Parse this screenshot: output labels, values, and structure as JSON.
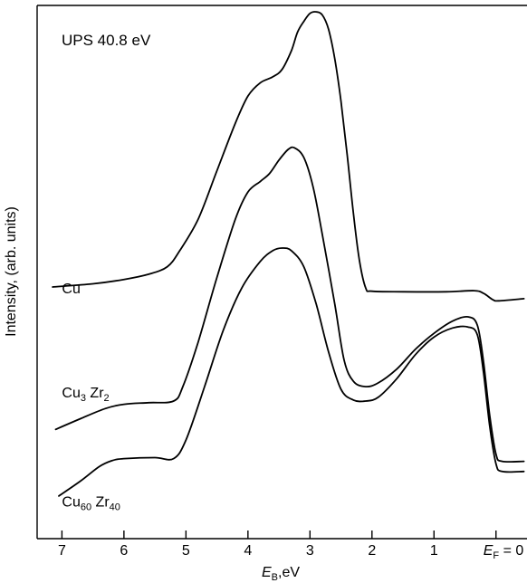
{
  "chart_data": {
    "type": "line",
    "title": "UPS 40.8 eV",
    "xlabel_main": "E",
    "xlabel_sub": "B",
    "xlabel_rest": ",eV",
    "ylabel": "Intensity, (arb. units)",
    "x_reversed": true,
    "xlim": [
      7.4,
      -0.5
    ],
    "ylim": [
      0,
      1
    ],
    "ticks": [
      {
        "value": 7,
        "label": "7"
      },
      {
        "value": 6,
        "label": "6"
      },
      {
        "value": 5,
        "label": "5"
      },
      {
        "value": 4,
        "label": "4"
      },
      {
        "value": 3,
        "label": "3"
      },
      {
        "value": 2,
        "label": "2"
      },
      {
        "value": 1,
        "label": "1"
      }
    ],
    "fermi_tick": {
      "value": 0,
      "main": "E",
      "sub": "F",
      "rest": " = 0"
    },
    "series": [
      {
        "name": "Cu",
        "label_main": "Cu",
        "label_sub1": "",
        "label_mid": "",
        "label_sub2": "",
        "label_at": [
          7.0,
          0.46
        ],
        "points": [
          [
            7.15,
            0.472
          ],
          [
            6.5,
            0.478
          ],
          [
            6.0,
            0.486
          ],
          [
            5.6,
            0.496
          ],
          [
            5.3,
            0.51
          ],
          [
            5.1,
            0.54
          ],
          [
            4.8,
            0.6
          ],
          [
            4.5,
            0.69
          ],
          [
            4.2,
            0.78
          ],
          [
            4.0,
            0.83
          ],
          [
            3.8,
            0.855
          ],
          [
            3.6,
            0.866
          ],
          [
            3.45,
            0.88
          ],
          [
            3.3,
            0.915
          ],
          [
            3.2,
            0.95
          ],
          [
            3.1,
            0.97
          ],
          [
            3.0,
            0.985
          ],
          [
            2.9,
            0.988
          ],
          [
            2.8,
            0.982
          ],
          [
            2.7,
            0.955
          ],
          [
            2.6,
            0.9
          ],
          [
            2.5,
            0.82
          ],
          [
            2.4,
            0.72
          ],
          [
            2.3,
            0.61
          ],
          [
            2.2,
            0.52
          ],
          [
            2.1,
            0.47
          ],
          [
            2.0,
            0.464
          ],
          [
            1.5,
            0.463
          ],
          [
            0.8,
            0.463
          ],
          [
            0.35,
            0.465
          ],
          [
            0.2,
            0.46
          ],
          [
            0.05,
            0.448
          ],
          [
            -0.05,
            0.446
          ],
          [
            -0.45,
            0.45
          ]
        ]
      },
      {
        "name": "Cu3 Zr2",
        "label_main": "Cu",
        "label_sub1": "3",
        "label_mid": " Zr",
        "label_sub2": "2",
        "label_at": [
          7.0,
          0.265
        ],
        "points": [
          [
            7.1,
            0.205
          ],
          [
            6.7,
            0.225
          ],
          [
            6.3,
            0.244
          ],
          [
            6.0,
            0.252
          ],
          [
            5.6,
            0.255
          ],
          [
            5.2,
            0.258
          ],
          [
            5.05,
            0.285
          ],
          [
            4.8,
            0.37
          ],
          [
            4.5,
            0.49
          ],
          [
            4.2,
            0.6
          ],
          [
            4.0,
            0.65
          ],
          [
            3.8,
            0.67
          ],
          [
            3.65,
            0.685
          ],
          [
            3.5,
            0.71
          ],
          [
            3.35,
            0.73
          ],
          [
            3.25,
            0.733
          ],
          [
            3.1,
            0.715
          ],
          [
            2.95,
            0.66
          ],
          [
            2.8,
            0.57
          ],
          [
            2.6,
            0.44
          ],
          [
            2.45,
            0.335
          ],
          [
            2.3,
            0.295
          ],
          [
            2.1,
            0.285
          ],
          [
            1.9,
            0.292
          ],
          [
            1.6,
            0.318
          ],
          [
            1.3,
            0.355
          ],
          [
            1.0,
            0.385
          ],
          [
            0.7,
            0.408
          ],
          [
            0.45,
            0.416
          ],
          [
            0.3,
            0.4
          ],
          [
            0.2,
            0.33
          ],
          [
            0.1,
            0.23
          ],
          [
            0.0,
            0.158
          ],
          [
            -0.1,
            0.145
          ],
          [
            -0.45,
            0.145
          ]
        ]
      },
      {
        "name": "Cu60 Zr40",
        "label_main": "Cu",
        "label_sub1": "60",
        "label_mid": " Zr",
        "label_sub2": "40",
        "label_at": [
          7.0,
          0.06
        ],
        "points": [
          [
            7.05,
            0.08
          ],
          [
            6.7,
            0.108
          ],
          [
            6.4,
            0.135
          ],
          [
            6.2,
            0.146
          ],
          [
            6.0,
            0.15
          ],
          [
            5.5,
            0.152
          ],
          [
            5.2,
            0.15
          ],
          [
            5.0,
            0.185
          ],
          [
            4.7,
            0.285
          ],
          [
            4.4,
            0.39
          ],
          [
            4.1,
            0.47
          ],
          [
            3.8,
            0.52
          ],
          [
            3.6,
            0.54
          ],
          [
            3.45,
            0.545
          ],
          [
            3.3,
            0.54
          ],
          [
            3.1,
            0.51
          ],
          [
            2.9,
            0.44
          ],
          [
            2.7,
            0.35
          ],
          [
            2.5,
            0.28
          ],
          [
            2.3,
            0.26
          ],
          [
            2.1,
            0.258
          ],
          [
            1.9,
            0.265
          ],
          [
            1.6,
            0.3
          ],
          [
            1.3,
            0.345
          ],
          [
            1.0,
            0.378
          ],
          [
            0.7,
            0.395
          ],
          [
            0.45,
            0.397
          ],
          [
            0.3,
            0.382
          ],
          [
            0.2,
            0.31
          ],
          [
            0.1,
            0.21
          ],
          [
            0.0,
            0.14
          ],
          [
            -0.1,
            0.126
          ],
          [
            -0.45,
            0.126
          ]
        ]
      }
    ]
  }
}
